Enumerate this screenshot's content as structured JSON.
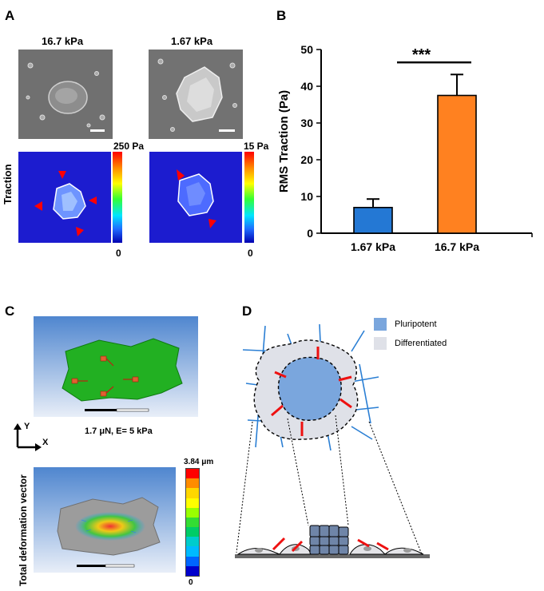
{
  "panel_a": {
    "label": "A",
    "stiff_title": "16.7 kPa",
    "soft_title": "1.67 kPa",
    "row_label": "Traction",
    "stiff_max": "250 Pa",
    "soft_max": "15 Pa",
    "stiff_min": "0",
    "soft_min": "0"
  },
  "panel_b": {
    "label": "B",
    "significance": "***"
  },
  "chart_data": {
    "type": "bar",
    "categories": [
      "1.67 kPa",
      "16.7 kPa"
    ],
    "values": [
      7,
      37.5
    ],
    "errors": [
      2.3,
      5.7
    ],
    "colors": [
      "#2478d4",
      "#ff8120"
    ],
    "ylabel": "RMS Traction (Pa)",
    "xlabel": "",
    "ylim": [
      0,
      50
    ],
    "yticks": [
      0,
      10,
      20,
      30,
      40,
      50
    ]
  },
  "panel_c": {
    "label": "C",
    "axis_y": "Y",
    "axis_x": "X",
    "caption": "1.7 μN, E= 5 kPa",
    "side_label": "Total deformation vector",
    "legend_max": "3.84 μm",
    "legend_min": "0",
    "legend_colors": [
      "#ff0000",
      "#ff8c00",
      "#ffd700",
      "#ffff00",
      "#99ff00",
      "#33dd33",
      "#00cc66",
      "#00cccc",
      "#00bbff",
      "#0066ff",
      "#0000cc"
    ]
  },
  "panel_d": {
    "label": "D",
    "legend": [
      {
        "label": "Pluripotent",
        "color": "#7aa6dd"
      },
      {
        "label": "Differentiated",
        "color": "#dfe1e8"
      }
    ]
  }
}
